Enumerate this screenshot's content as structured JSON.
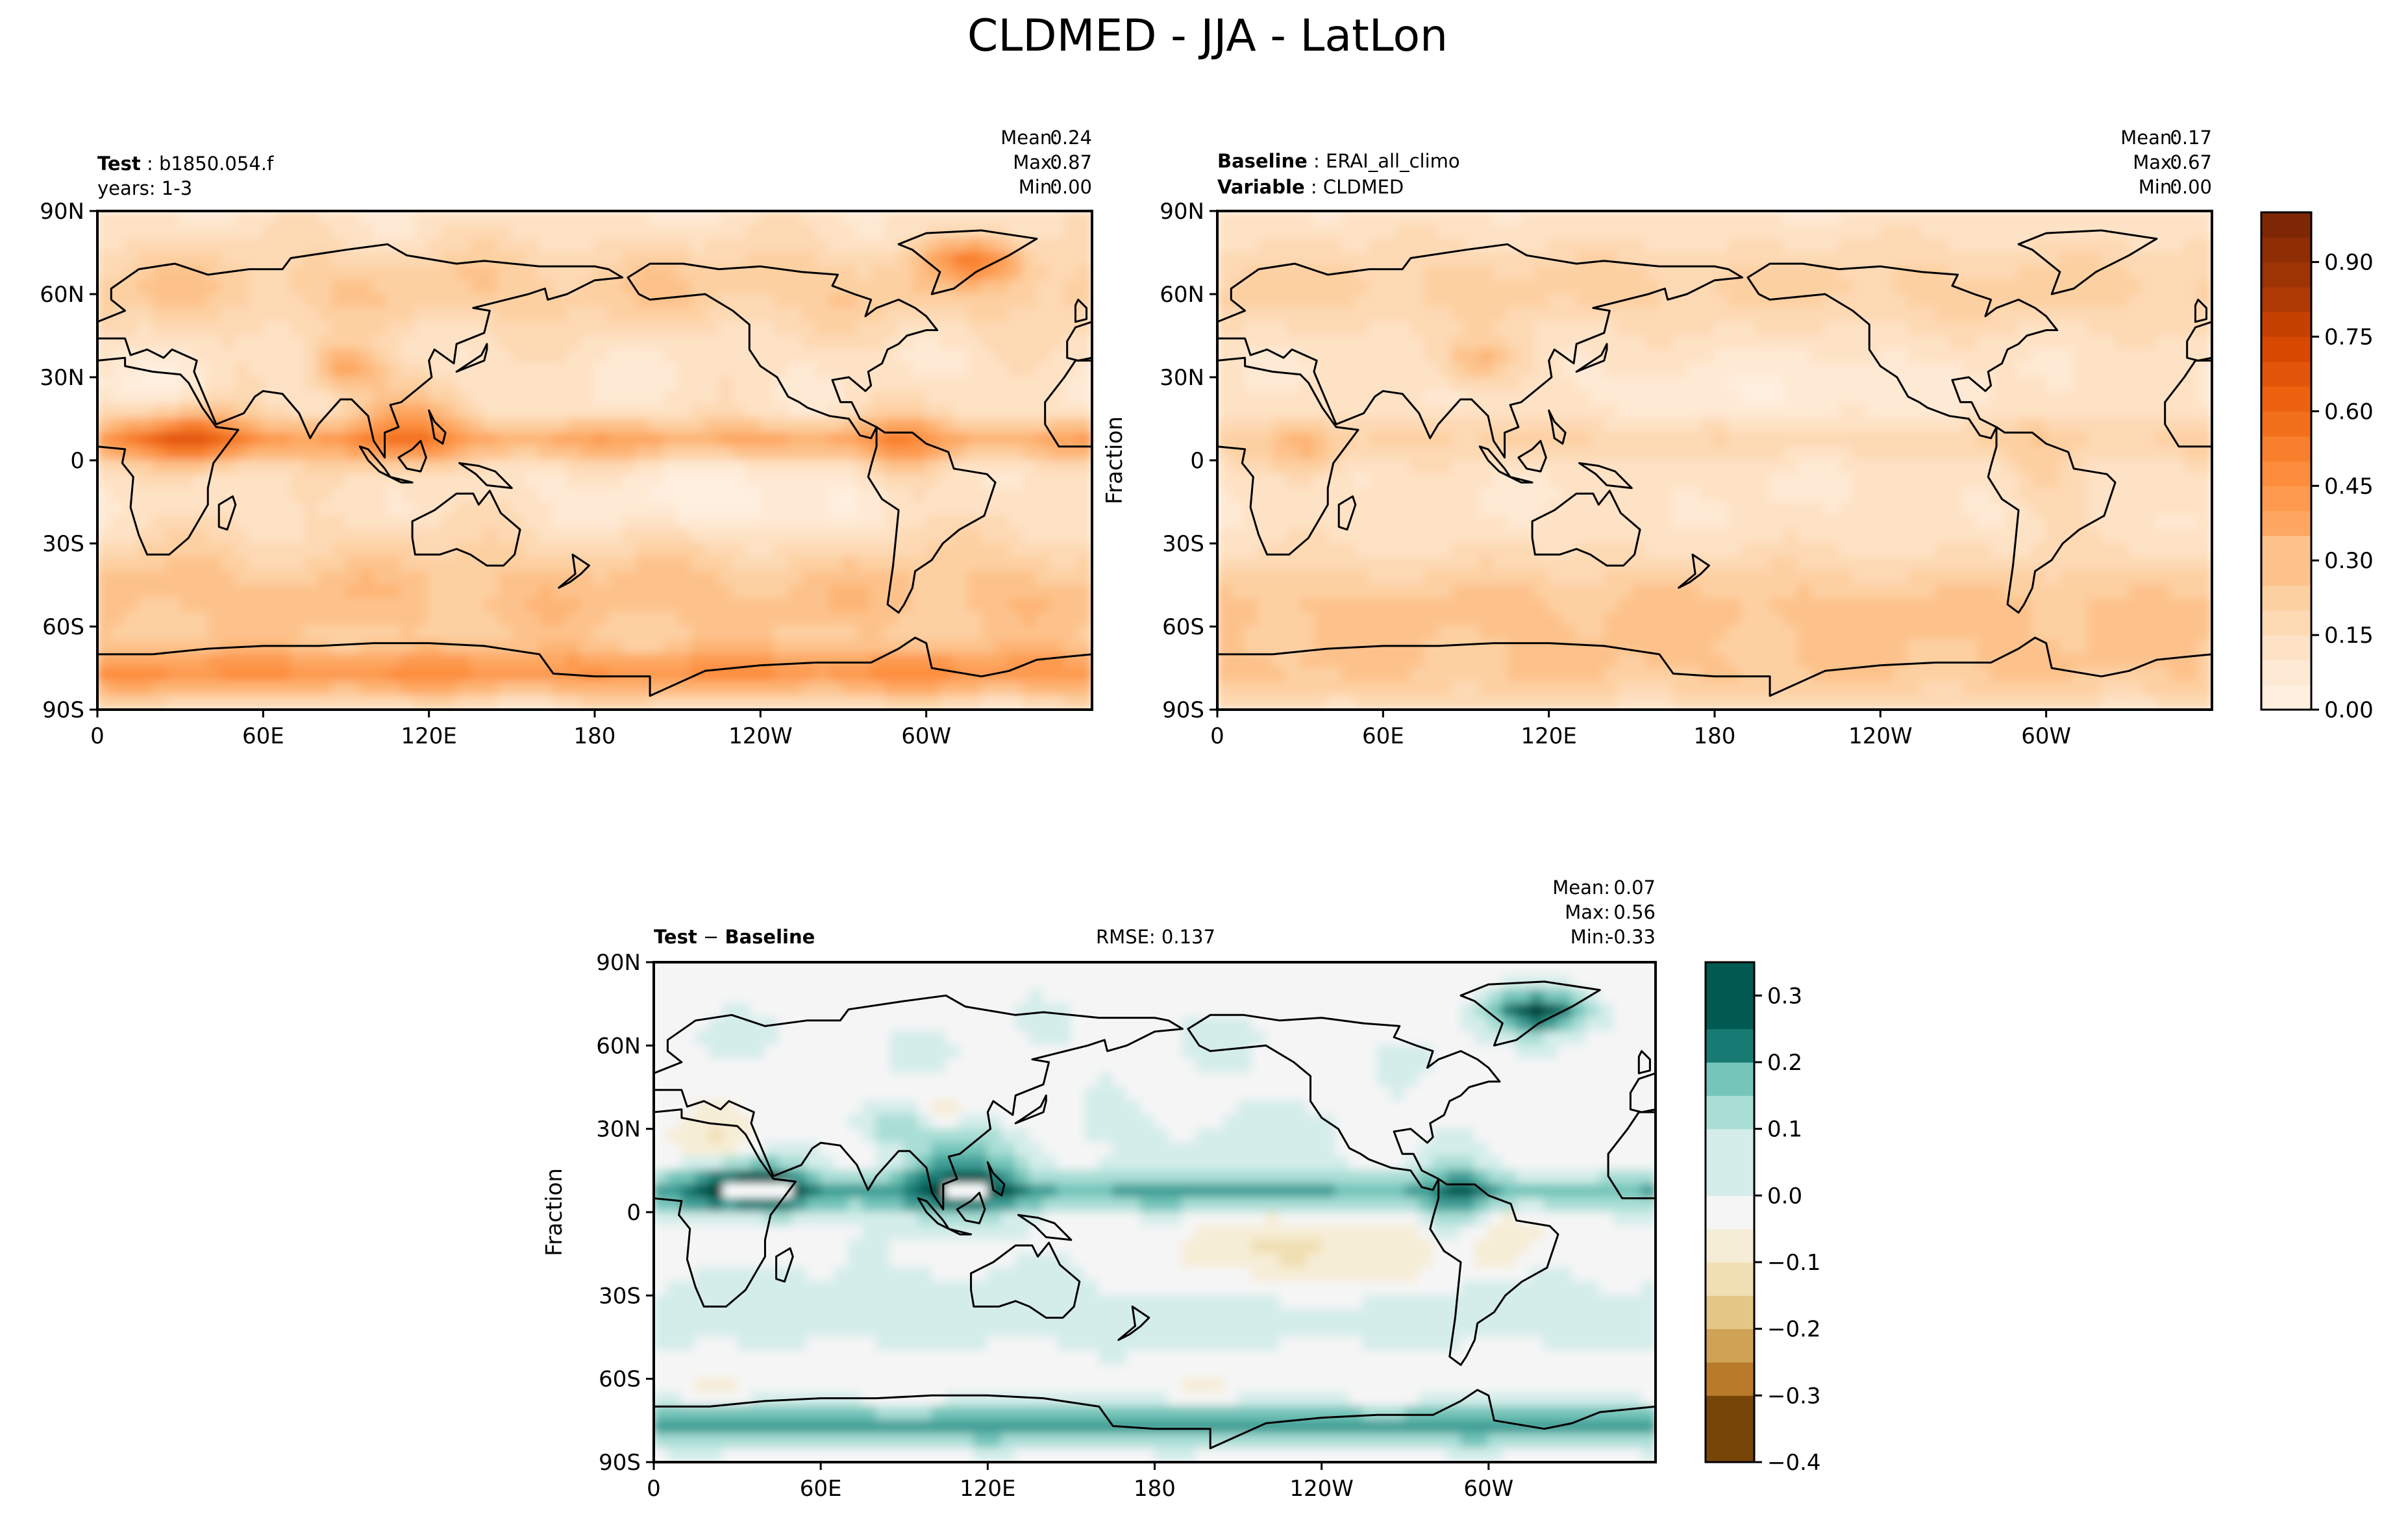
{
  "figure": {
    "title": "CLDMED - JJA - LatLon"
  },
  "chart_data": [
    {
      "type": "heatmap",
      "panel": "test",
      "title_label": "Test",
      "title_value": "b1850.054.f",
      "subtitle": "years: 1-3",
      "stats": {
        "mean_label": "Mean:",
        "mean": "0.24",
        "max_label": "Max:",
        "max": "0.87",
        "min_label": "Min:",
        "min": "0.00"
      },
      "xticks": [
        "0",
        "60E",
        "120E",
        "180",
        "120W",
        "60W"
      ],
      "yticks": [
        "90N",
        "60N",
        "30N",
        "0",
        "30S",
        "60S",
        "90S"
      ],
      "ylabel": "",
      "xlim": [
        0,
        360
      ],
      "ylim": [
        -90,
        90
      ],
      "value_range": [
        0.0,
        0.87
      ],
      "field": "test"
    },
    {
      "type": "heatmap",
      "panel": "reference",
      "title_label": "Baseline",
      "title_value": "ERAI_all_climo",
      "subtitle_label": "Variable",
      "subtitle_value": "CLDMED",
      "stats": {
        "mean_label": "Mean:",
        "mean": "0.17",
        "max_label": "Max:",
        "max": "0.67",
        "min_label": "Min:",
        "min": "0.00"
      },
      "xticks": [
        "0",
        "60E",
        "120E",
        "180",
        "120W",
        "60W"
      ],
      "yticks": [
        "90N",
        "60N",
        "30N",
        "0",
        "30S",
        "60S",
        "90S"
      ],
      "ylabel": "Fraction",
      "xlim": [
        0,
        360
      ],
      "ylim": [
        -90,
        90
      ],
      "value_range": [
        0.0,
        0.67
      ],
      "field": "ref",
      "colorbar": {
        "ticks": [
          "0.00",
          "0.15",
          "0.30",
          "0.45",
          "0.60",
          "0.75",
          "0.90"
        ],
        "range": [
          0.0,
          1.0
        ],
        "levels": 20
      }
    },
    {
      "type": "heatmap",
      "panel": "difference",
      "title_label": "Test",
      "title_op": " − ",
      "title_label2": "Baseline",
      "rmse_text": "RMSE: 0.137",
      "stats": {
        "mean_label": "Mean:",
        "mean": "0.07",
        "max_label": "Max:",
        "max": "0.56",
        "min_label": "Min:",
        "min": "-0.33"
      },
      "xticks": [
        "0",
        "60E",
        "120E",
        "180",
        "120W",
        "60W"
      ],
      "yticks": [
        "90N",
        "60N",
        "30N",
        "0",
        "30S",
        "60S",
        "90S"
      ],
      "ylabel": "Fraction",
      "xlim": [
        0,
        360
      ],
      "ylim": [
        -90,
        90
      ],
      "value_range": [
        -0.33,
        0.56
      ],
      "field": "diff",
      "colorbar": {
        "ticks": [
          "0.3",
          "0.2",
          "0.1",
          "0.0",
          "−0.1",
          "−0.2",
          "−0.3",
          "−0.4"
        ],
        "range": [
          -0.4,
          0.35
        ],
        "levels": 15
      }
    }
  ],
  "colors": {
    "orange_ramp": [
      "#fff5eb",
      "#fee6ce",
      "#fdd0a2",
      "#fdae6b",
      "#fd8d3c",
      "#f16913",
      "#d94801",
      "#a63603",
      "#7f2704"
    ],
    "diff_ramp": [
      "#543005",
      "#8c510a",
      "#bf812d",
      "#dfc27d",
      "#f6e8c3",
      "#f5f5f5",
      "#c7eae5",
      "#80cdc1",
      "#35978f",
      "#01665e",
      "#003c30"
    ],
    "coastline": "#000000"
  }
}
